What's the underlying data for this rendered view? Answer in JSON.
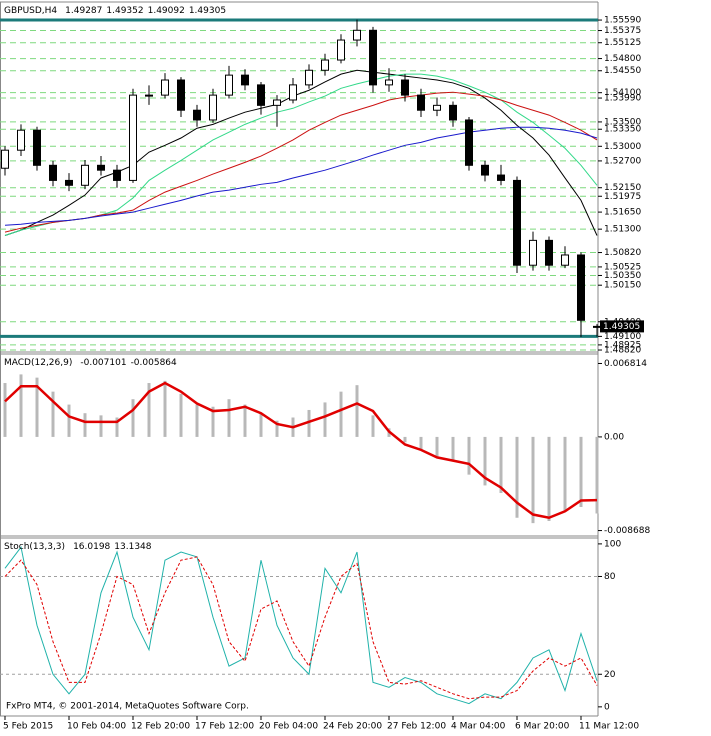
{
  "chart_data": [
    {
      "type": "candlestick",
      "title": "GBPUSD,H4",
      "readout": [
        1.49287,
        1.49352,
        1.49092,
        1.49305
      ],
      "categories": [
        "5 Feb 2015",
        null,
        null,
        null,
        "10 Feb 04:00",
        null,
        null,
        null,
        "12 Feb 20:00",
        null,
        null,
        null,
        "17 Feb 12:00",
        null,
        null,
        null,
        "20 Feb 04:00",
        null,
        null,
        null,
        "24 Feb 20:00",
        null,
        null,
        null,
        "27 Feb 12:00",
        null,
        null,
        null,
        "4 Mar 04:00",
        null,
        null,
        null,
        "6 Mar 20:00",
        null,
        null,
        null,
        "11 Mar 12:00",
        null
      ],
      "open": [
        1.5255,
        1.5292,
        1.5333,
        1.5261,
        1.523,
        1.522,
        1.5261,
        1.5251,
        1.523,
        1.5405,
        1.5405,
        1.5436,
        1.5374,
        1.5354,
        1.5405,
        1.5446,
        1.5426,
        1.5384,
        1.5395,
        1.5426,
        1.5456,
        1.5477,
        1.5518,
        1.5538,
        1.5426,
        1.5436,
        1.5405,
        1.5374,
        1.5384,
        1.5354,
        1.5261,
        1.5241,
        1.523,
        1.5056,
        1.5107,
        1.5056,
        1.5077,
        1.49287
      ],
      "high": [
        1.53,
        1.5345,
        1.534,
        1.527,
        1.5245,
        1.5272,
        1.528,
        1.5262,
        1.5418,
        1.5425,
        1.545,
        1.5442,
        1.5385,
        1.5418,
        1.5465,
        1.5458,
        1.5432,
        1.5405,
        1.544,
        1.5468,
        1.549,
        1.553,
        1.556,
        1.5545,
        1.546,
        1.5448,
        1.5418,
        1.54,
        1.5392,
        1.536,
        1.527,
        1.5262,
        1.5238,
        1.5125,
        1.5115,
        1.5095,
        1.5082,
        1.49352
      ],
      "low": [
        1.524,
        1.528,
        1.525,
        1.5218,
        1.5208,
        1.5212,
        1.524,
        1.5215,
        1.5225,
        1.5385,
        1.5398,
        1.536,
        1.534,
        1.5348,
        1.5398,
        1.5415,
        1.5365,
        1.534,
        1.5388,
        1.5418,
        1.5445,
        1.547,
        1.5505,
        1.541,
        1.5412,
        1.5392,
        1.536,
        1.5362,
        1.534,
        1.525,
        1.5228,
        1.522,
        1.504,
        1.5045,
        1.5045,
        1.505,
        1.4909,
        1.49092
      ],
      "close": [
        1.5292,
        1.5333,
        1.5261,
        1.523,
        1.522,
        1.5261,
        1.5251,
        1.523,
        1.5405,
        1.5405,
        1.5436,
        1.5374,
        1.5354,
        1.5405,
        1.5446,
        1.5426,
        1.5384,
        1.5395,
        1.5426,
        1.5456,
        1.5477,
        1.5518,
        1.5538,
        1.5426,
        1.5436,
        1.5405,
        1.5374,
        1.5384,
        1.5354,
        1.5261,
        1.5241,
        1.523,
        1.5056,
        1.5107,
        1.5056,
        1.5077,
        1.4943,
        1.49305
      ],
      "up_color": "#ffffff",
      "down_color": "#000000",
      "color": "#000000",
      "series": [
        {
          "color": "#000000",
          "values": [
            1.5117,
            1.5128,
            1.5144,
            1.5159,
            1.5179,
            1.52,
            1.5235,
            1.5247,
            1.5261,
            1.5288,
            1.5302,
            1.5317,
            1.5337,
            1.5345,
            1.5358,
            1.537,
            1.5378,
            1.5386,
            1.5403,
            1.5415,
            1.5432,
            1.5448,
            1.5456,
            1.5452,
            1.5448,
            1.5444,
            1.544,
            1.5436,
            1.543,
            1.5419,
            1.5399,
            1.5374,
            1.5343,
            1.5317,
            1.5282,
            1.5235,
            1.5189,
            1.5117
          ]
        },
        {
          "color": "#33d98a",
          "values": [
            1.5117,
            1.5128,
            1.5136,
            1.5144,
            1.5148,
            1.5152,
            1.5159,
            1.5169,
            1.5194,
            1.523,
            1.5251,
            1.5271,
            1.5292,
            1.5313,
            1.5329,
            1.5345,
            1.5358,
            1.537,
            1.5378,
            1.5391,
            1.5403,
            1.5419,
            1.5428,
            1.5436,
            1.5444,
            1.5448,
            1.5448,
            1.5444,
            1.5436,
            1.5424,
            1.5411,
            1.5395,
            1.537,
            1.5349,
            1.5323,
            1.5296,
            1.5261,
            1.522
          ]
        },
        {
          "color": "#cc1111",
          "values": [
            1.5124,
            1.5132,
            1.5138,
            1.5144,
            1.5148,
            1.5152,
            1.5159,
            1.5163,
            1.5169,
            1.5189,
            1.5206,
            1.5218,
            1.523,
            1.5243,
            1.5255,
            1.5267,
            1.528,
            1.5296,
            1.5313,
            1.5333,
            1.5349,
            1.5364,
            1.5374,
            1.5384,
            1.5395,
            1.5401,
            1.5405,
            1.5409,
            1.5411,
            1.5407,
            1.5403,
            1.5395,
            1.5384,
            1.5374,
            1.5364,
            1.5349,
            1.5333,
            1.5313
          ]
        },
        {
          "color": "#1a1acc",
          "values": [
            1.5138,
            1.514,
            1.5144,
            1.5146,
            1.5148,
            1.5152,
            1.5157,
            1.5161,
            1.5165,
            1.5173,
            1.5181,
            1.5189,
            1.5198,
            1.5206,
            1.521,
            1.5216,
            1.5222,
            1.5226,
            1.5235,
            1.5243,
            1.5251,
            1.5261,
            1.5271,
            1.5282,
            1.5292,
            1.5302,
            1.5308,
            1.5317,
            1.5323,
            1.5329,
            1.5333,
            1.5337,
            1.5339,
            1.5339,
            1.5337,
            1.5333,
            1.5327,
            1.5317
          ]
        }
      ],
      "ylim": [
        1.488,
        1.5594
      ],
      "yticks": [
        {
          "value": 1.5559,
          "label": "1.55590"
        },
        {
          "value": 1.55375,
          "label": "1.55375"
        },
        {
          "value": 1.55125,
          "label": "1.55125"
        },
        {
          "value": 1.548,
          "label": "1.54800"
        },
        {
          "value": 1.5455,
          "label": "1.54550"
        },
        {
          "value": 1.541,
          "label": "1.54100"
        },
        {
          "value": 1.5399,
          "label": "1.53990"
        },
        {
          "value": 1.535,
          "label": "1.53500"
        },
        {
          "value": 1.5335,
          "label": "1.53350"
        },
        {
          "value": 1.53,
          "label": "1.53000"
        },
        {
          "value": 1.527,
          "label": "1.52700"
        },
        {
          "value": 1.5215,
          "label": "1.52150"
        },
        {
          "value": 1.51975,
          "label": "1.51975"
        },
        {
          "value": 1.5165,
          "label": "1.51650"
        },
        {
          "value": 1.513,
          "label": "1.51300"
        },
        {
          "value": 1.5082,
          "label": "1.50820"
        },
        {
          "value": 1.50525,
          "label": "1.50525"
        },
        {
          "value": 1.5035,
          "label": "1.50350"
        },
        {
          "value": 1.5015,
          "label": "1.50150"
        },
        {
          "value": 1.494,
          "label": "1.49400"
        },
        {
          "value": 1.491,
          "label": "1.49100"
        },
        {
          "value": 1.48925,
          "label": "1.48925"
        },
        {
          "value": 1.4882,
          "label": "1.48820"
        }
      ],
      "grid": true,
      "grid_color": "#7fd97f",
      "levels": [
        1.5559,
        1.491
      ],
      "level_color": "#1b7a7a",
      "last_price": {
        "value": 1.49305,
        "label": "1.49305"
      }
    },
    {
      "type": "indicator",
      "title": "MACD(12,26,9)",
      "readout": [
        -0.007101,
        -0.005864
      ],
      "series": [
        {
          "style": "histogram",
          "color": "#b8b8b8",
          "values": [
            0.005,
            0.0058,
            0.0055,
            0.0042,
            0.003,
            0.0022,
            0.002,
            0.0018,
            0.0035,
            0.005,
            0.0052,
            0.004,
            0.003,
            0.0028,
            0.0035,
            0.003,
            0.0022,
            0.0015,
            0.0018,
            0.0025,
            0.0032,
            0.0042,
            0.0048,
            0.002,
            0.0008,
            -0.0005,
            -0.0012,
            -0.0018,
            -0.0022,
            -0.0035,
            -0.0045,
            -0.0052,
            -0.0075,
            -0.008,
            -0.0078,
            -0.0068,
            -0.0065,
            -0.007101
          ]
        },
        {
          "style": "line",
          "color": "#e00000",
          "values": [
            0.0033,
            0.0047,
            0.0047,
            0.0033,
            0.0019,
            0.0014,
            0.0014,
            0.0014,
            0.0025,
            0.0042,
            0.005,
            0.0042,
            0.0031,
            0.0024,
            0.0025,
            0.0028,
            0.0022,
            0.0012,
            0.0009,
            0.0014,
            0.0019,
            0.0025,
            0.0031,
            0.0024,
            0.0005,
            -0.0007,
            -0.0012,
            -0.0019,
            -0.0022,
            -0.0025,
            -0.0038,
            -0.0047,
            -0.0061,
            -0.0072,
            -0.0075,
            -0.0069,
            -0.0059,
            -0.005864
          ]
        }
      ],
      "ylim": [
        -0.0091,
        0.0076
      ],
      "yticks": [
        0.006814,
        {
          "value": 0,
          "label": "0.00"
        },
        -0.008688
      ]
    },
    {
      "type": "indicator",
      "title": "Stoch(13,3,3)",
      "readout": [
        16.0198,
        13.1348
      ],
      "series": [
        {
          "style": "line",
          "color": "#20b2aa",
          "values": [
            85,
            98,
            50,
            20,
            8,
            20,
            70,
            95,
            55,
            35,
            90,
            95,
            92,
            55,
            25,
            30,
            90,
            50,
            30,
            20,
            85,
            70,
            95,
            15,
            12,
            18,
            15,
            8,
            5,
            2,
            8,
            5,
            15,
            30,
            35,
            10,
            45,
            16.0198
          ]
        },
        {
          "style": "dashed",
          "color": "#e00000",
          "values": [
            80,
            90,
            75,
            40,
            15,
            15,
            45,
            80,
            75,
            45,
            70,
            90,
            92,
            75,
            40,
            28,
            60,
            65,
            40,
            25,
            55,
            80,
            88,
            40,
            15,
            14,
            16,
            12,
            8,
            5,
            6,
            6,
            10,
            22,
            30,
            25,
            30,
            13.1348
          ]
        }
      ],
      "ylim": [
        -5,
        103
      ],
      "yticks": [
        100,
        80,
        20,
        0
      ],
      "levels": [
        80,
        20
      ],
      "level_color": "#a0a0a0"
    }
  ],
  "footer": "FxPro MT4, © 2001-2014, MetaQuotes Software Corp."
}
